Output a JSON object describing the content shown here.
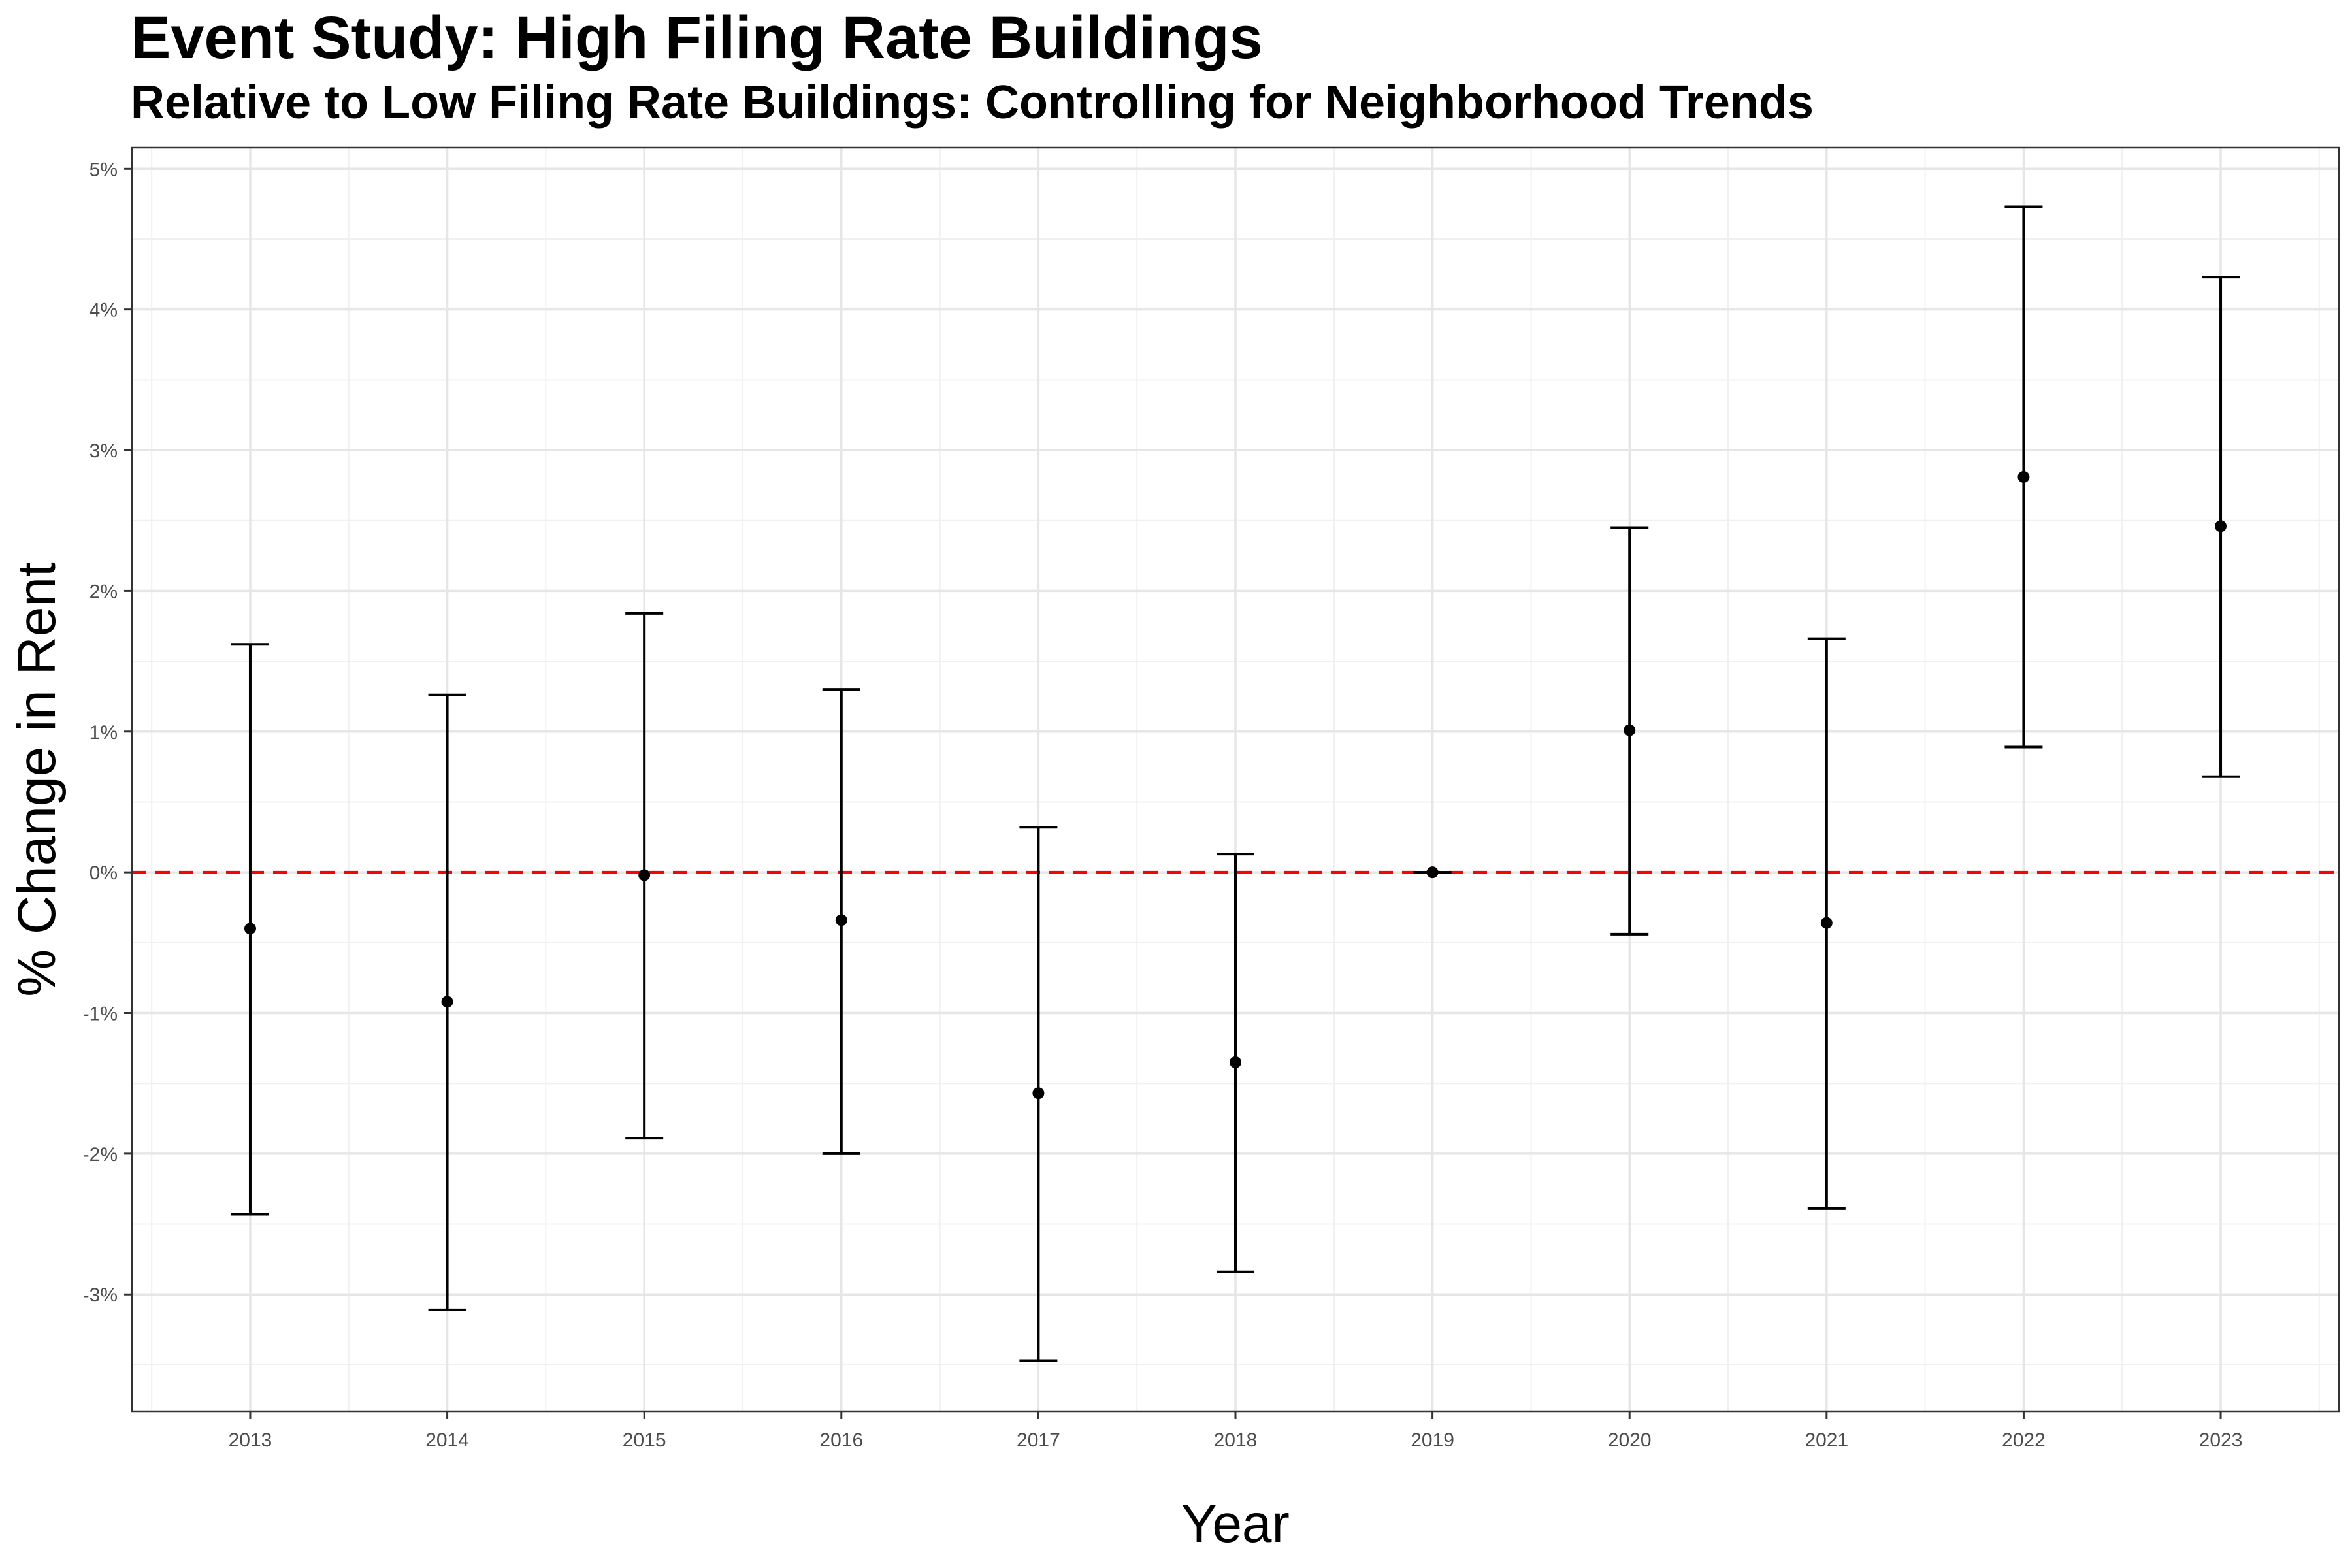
{
  "chart_data": {
    "type": "scatter",
    "title": "Event Study: High Filing Rate Buildings",
    "subtitle": "Relative to Low Filing Rate Buildings: Controlling for Neighborhood Trends",
    "xlabel": "Year",
    "ylabel": "% Change in Rent",
    "x": [
      "2013",
      "2014",
      "2015",
      "2016",
      "2017",
      "2018",
      "2019",
      "2020",
      "2021",
      "2022",
      "2023"
    ],
    "estimates": [
      -0.4,
      -0.92,
      -0.02,
      -0.34,
      -1.57,
      -1.35,
      0.0,
      1.01,
      -0.36,
      2.81,
      2.46
    ],
    "ci_lower": [
      -2.43,
      -3.11,
      -1.89,
      -2.0,
      -3.47,
      -2.84,
      0.0,
      -0.44,
      -2.39,
      0.89,
      0.68
    ],
    "ci_upper": [
      1.62,
      1.26,
      1.84,
      1.3,
      0.32,
      0.13,
      0.0,
      2.45,
      1.66,
      4.73,
      4.23
    ],
    "y_ticks": [
      -3,
      -2,
      -1,
      0,
      1,
      2,
      3,
      4,
      5
    ],
    "y_tick_labels": [
      "-3%",
      "-2%",
      "-1%",
      "0%",
      "1%",
      "2%",
      "3%",
      "4%",
      "5%"
    ],
    "ylim": [
      -3.83,
      5.15
    ],
    "reference_line": {
      "y": 0,
      "color": "#ff0000",
      "style": "dashed"
    },
    "grid": true,
    "point_color": "#000000",
    "errorbar_color": "#000000"
  }
}
